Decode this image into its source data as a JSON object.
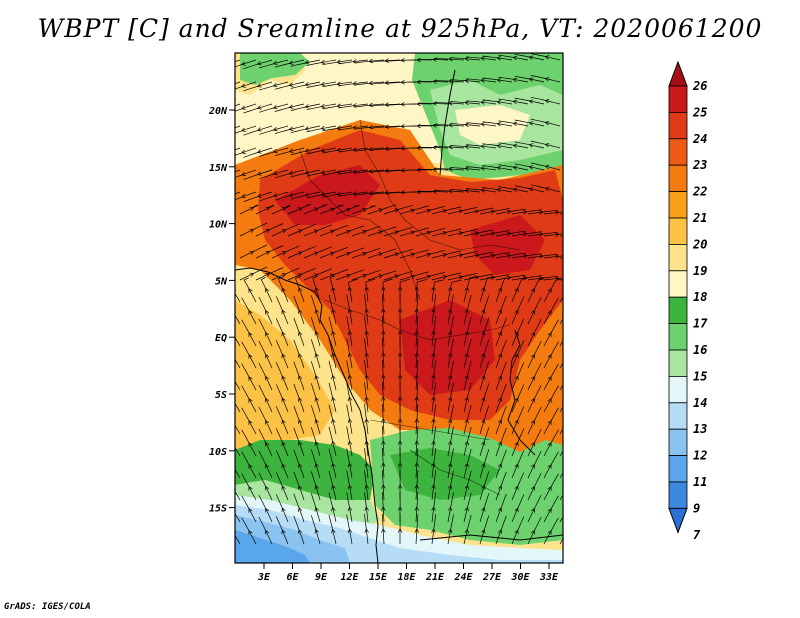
{
  "title": "WBPT [C] and Sreamline at 925hPa, VT: 2020061200",
  "footer": "GrADS: IGES/COLA",
  "lat_labels": [
    "20N",
    "15N",
    "10N",
    "5N",
    "EQ",
    "5S",
    "10S",
    "15S"
  ],
  "lon_labels": [
    "3E",
    "6E",
    "9E",
    "12E",
    "15E",
    "18E",
    "21E",
    "24E",
    "27E",
    "30E",
    "33E"
  ],
  "colorbar": {
    "labels": [
      "26",
      "25",
      "24",
      "23",
      "22",
      "21",
      "20",
      "19",
      "18",
      "17",
      "16",
      "15",
      "14",
      "13",
      "12",
      "11",
      "9",
      "7"
    ],
    "colors": [
      "#a50f15",
      "#cb181d",
      "#e03b17",
      "#ee5a14",
      "#f47b0f",
      "#f9a01b",
      "#fcc246",
      "#fde38c",
      "#fff6c5",
      "#3db43d",
      "#6dd26d",
      "#a8e6a0",
      "#e3f7f8",
      "#b6dcf6",
      "#8ac3f0",
      "#5aa6ea",
      "#3b8ae0",
      "#2a70d6"
    ]
  },
  "legend_colors": {
    "ocean_cold": "#3b8ae0",
    "ocean_cool": "#8ac3f0",
    "green_dark": "#3db43d",
    "green_light": "#a8e6a0",
    "cream": "#fff6c5",
    "yellow": "#fde38c",
    "orange": "#f47b0f",
    "red": "#e03b17",
    "red_dark": "#cb181d"
  }
}
